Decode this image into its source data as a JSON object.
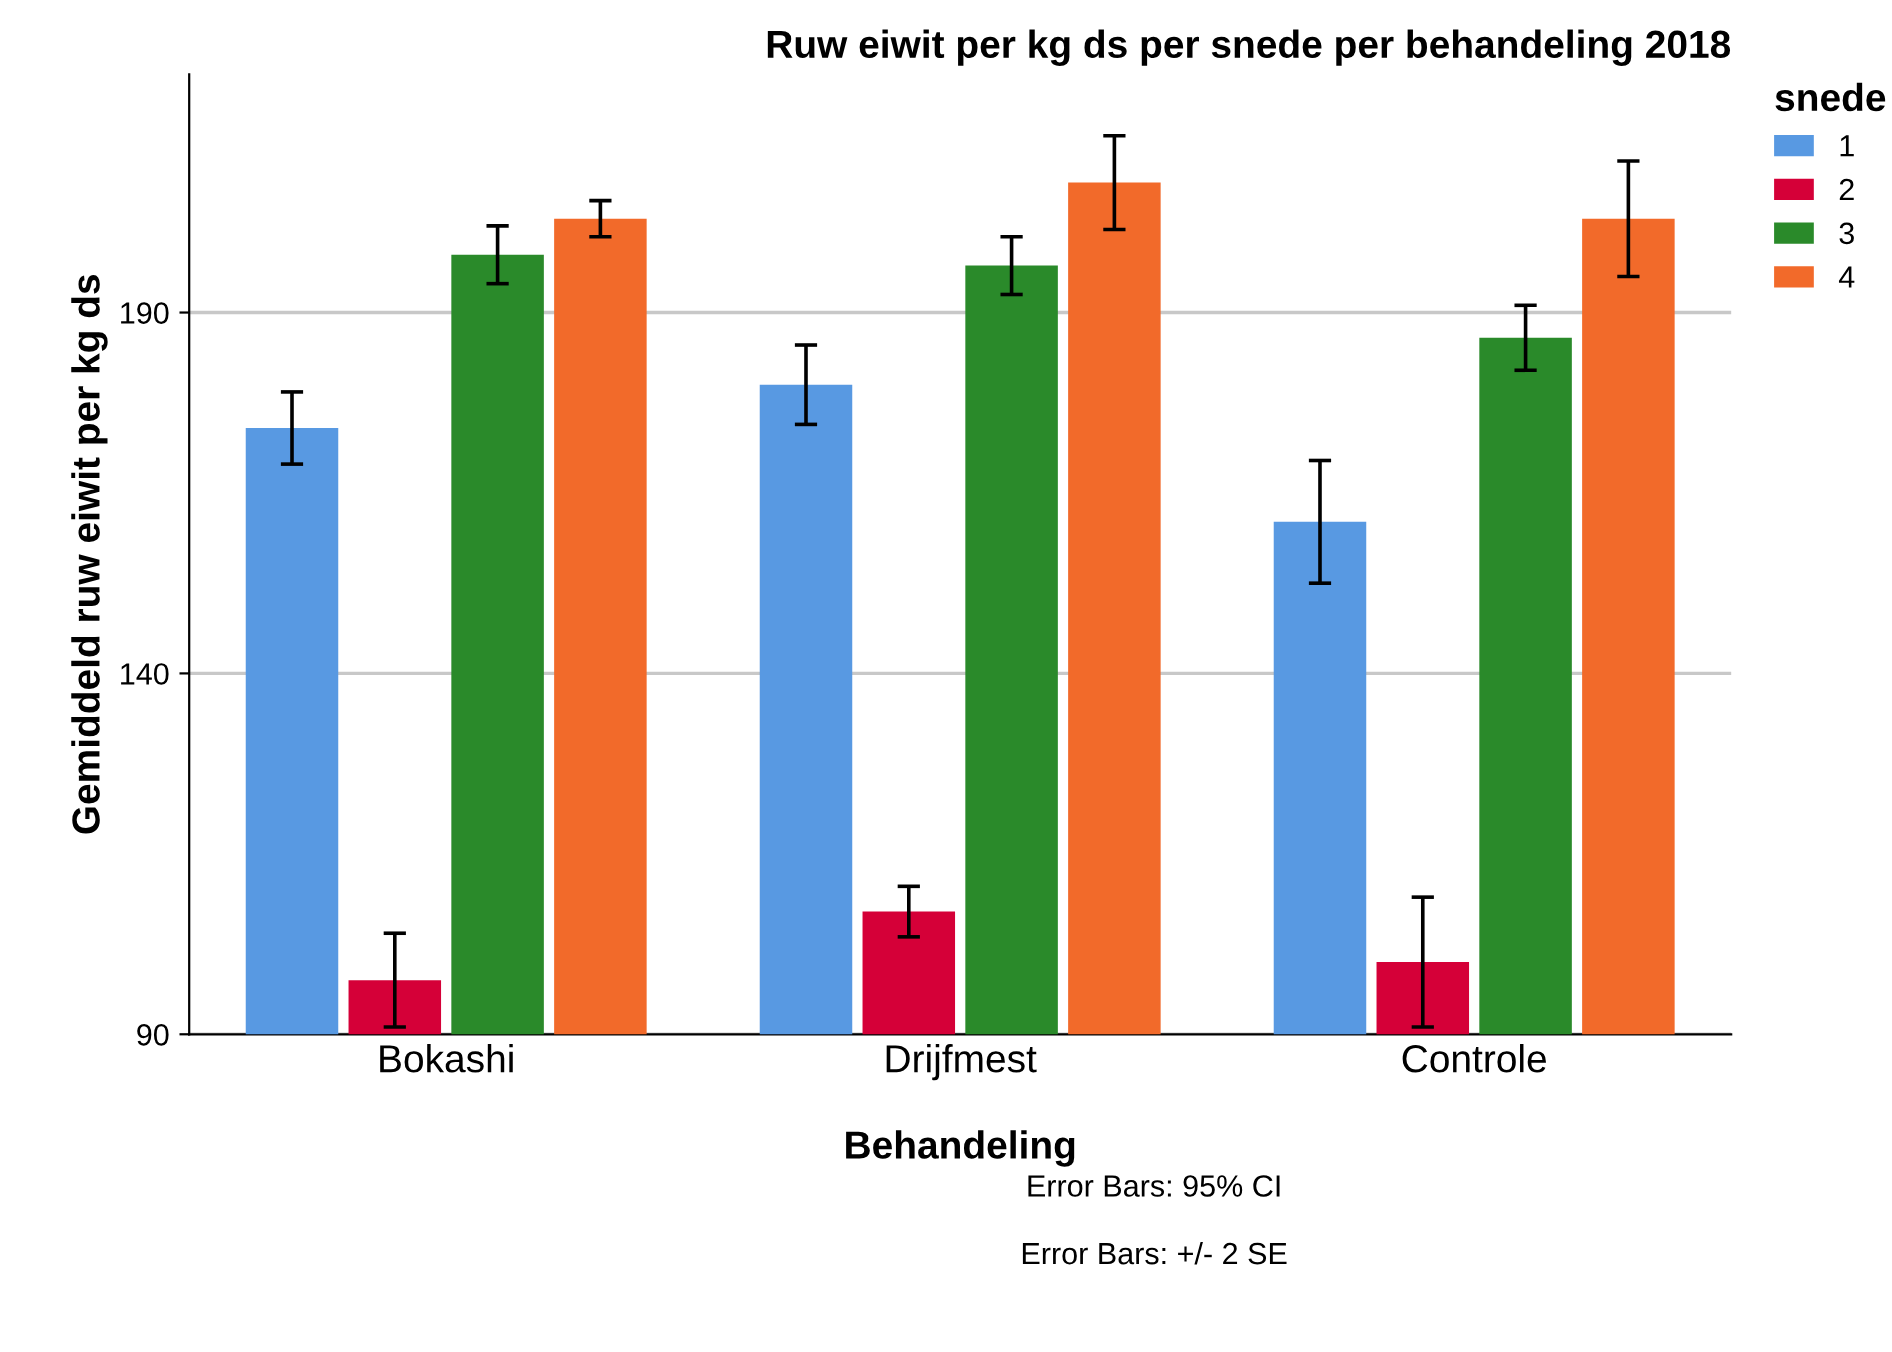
{
  "chart_data": {
    "type": "bar",
    "title": "Ruw eiwit per kg ds per snede per behandeling 2018",
    "xlabel": "Behandeling",
    "ylabel": "Gemiddeld ruw eiwit per kg ds",
    "legend_title": "snede",
    "categories": [
      "Bokashi",
      "Drijfmest",
      "Controle"
    ],
    "series": [
      {
        "name": "1",
        "color": "#5899e2",
        "values": [
          174,
          180,
          161
        ],
        "errors": [
          5,
          5.5,
          8.5
        ]
      },
      {
        "name": "2",
        "color": "#d50038",
        "values": [
          97.5,
          107,
          100
        ],
        "errors": [
          6.5,
          3.5,
          9
        ]
      },
      {
        "name": "3",
        "color": "#2a8a2a",
        "values": [
          198,
          196.5,
          186.5
        ],
        "errors": [
          4,
          4,
          4.5
        ]
      },
      {
        "name": "4",
        "color": "#f26a2a",
        "values": [
          203,
          208,
          203
        ],
        "errors": [
          2.5,
          6.5,
          8
        ]
      }
    ],
    "ylim": [
      90,
      223
    ],
    "yticks": [
      90,
      140,
      190
    ],
    "grid": "y",
    "legend": "top right",
    "annotations": [
      "Error Bars: 95% CI",
      "Error Bars: +/- 2 SE"
    ]
  }
}
